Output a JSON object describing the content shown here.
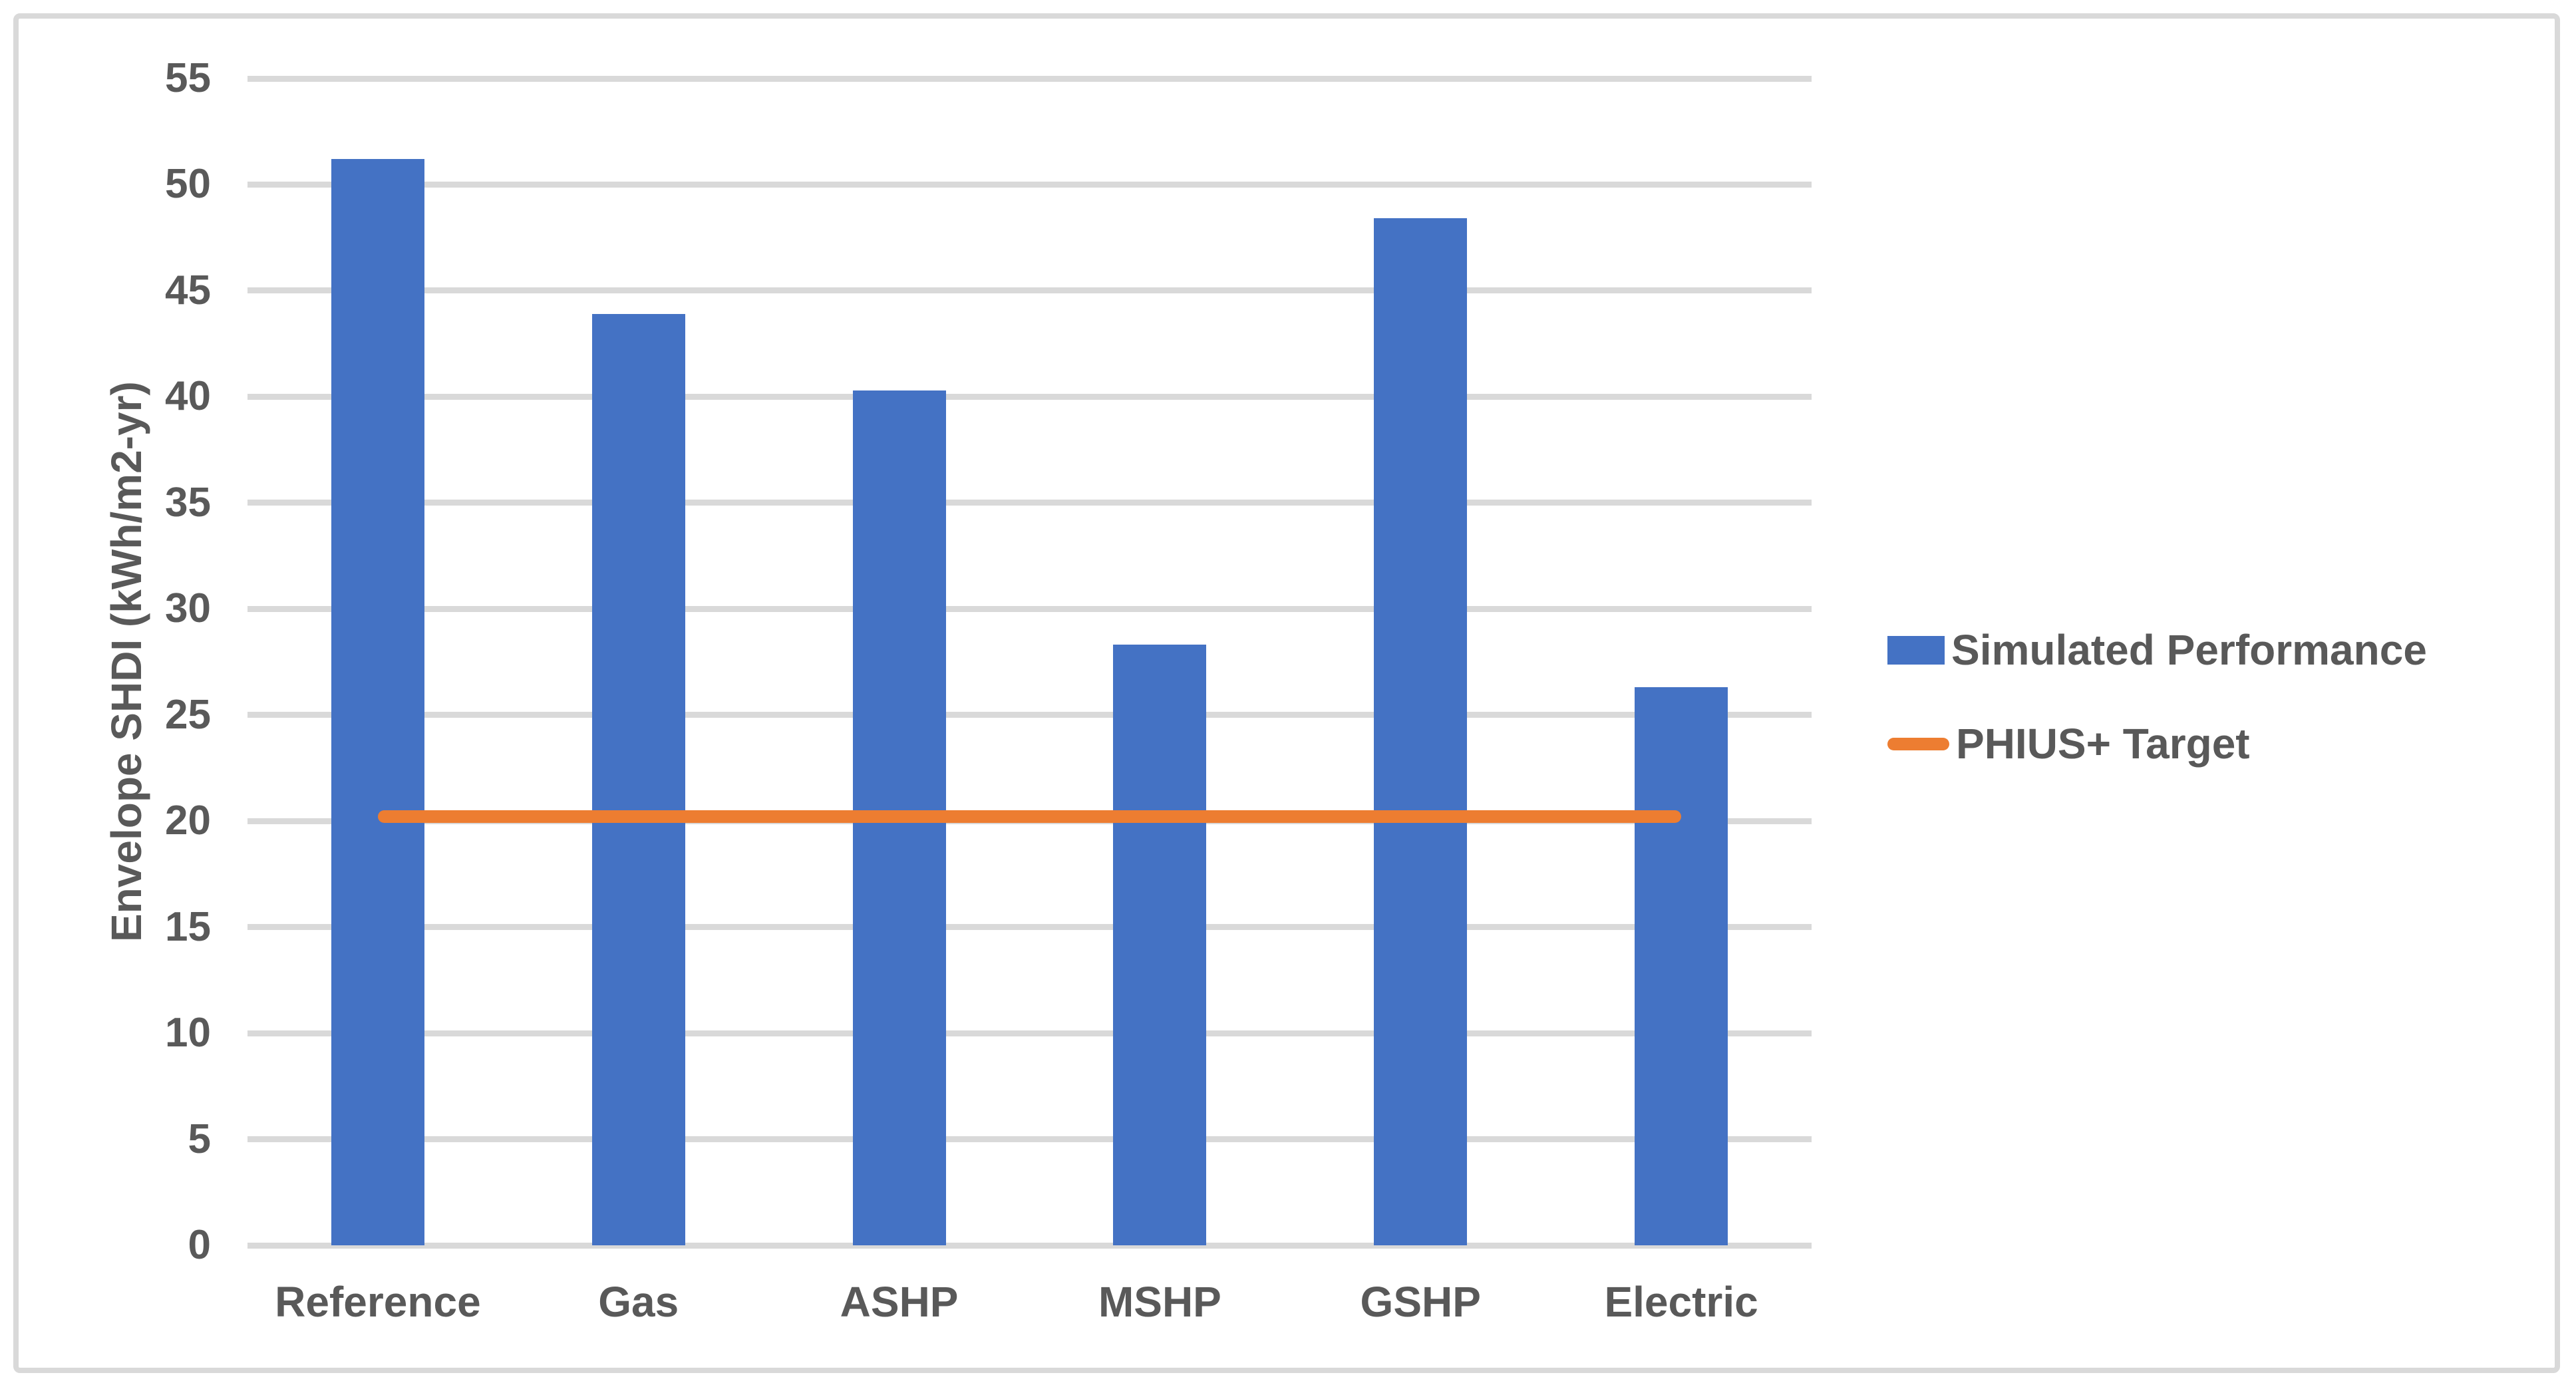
{
  "frame": {
    "border_color": "#D9D9D9",
    "background": "#FFFFFF"
  },
  "chart_data": {
    "type": "bar",
    "title": "",
    "categories": [
      "Reference",
      "Gas",
      "ASHP",
      "MSHP",
      "GSHP",
      "Electric"
    ],
    "series": [
      {
        "name": "Simulated Performance",
        "type": "bar",
        "color": "#4472C4",
        "values": [
          51.2,
          43.9,
          40.3,
          28.3,
          48.4,
          26.3
        ]
      },
      {
        "name": "PHIUS+ Target",
        "type": "line",
        "color": "#ED7D31",
        "values": [
          20.2,
          20.2,
          20.2,
          20.2,
          20.2,
          20.2
        ]
      }
    ],
    "xlabel": "",
    "ylabel": "Envelope SHDI (kWh/m2-yr)",
    "ylim": [
      0,
      55
    ],
    "yticks": [
      0,
      5,
      10,
      15,
      20,
      25,
      30,
      35,
      40,
      45,
      50,
      55
    ],
    "grid": true,
    "gridline_color": "#D9D9D9",
    "axis_line_color": "#D9D9D9",
    "text_color": "#595959",
    "legend_position": "right"
  }
}
